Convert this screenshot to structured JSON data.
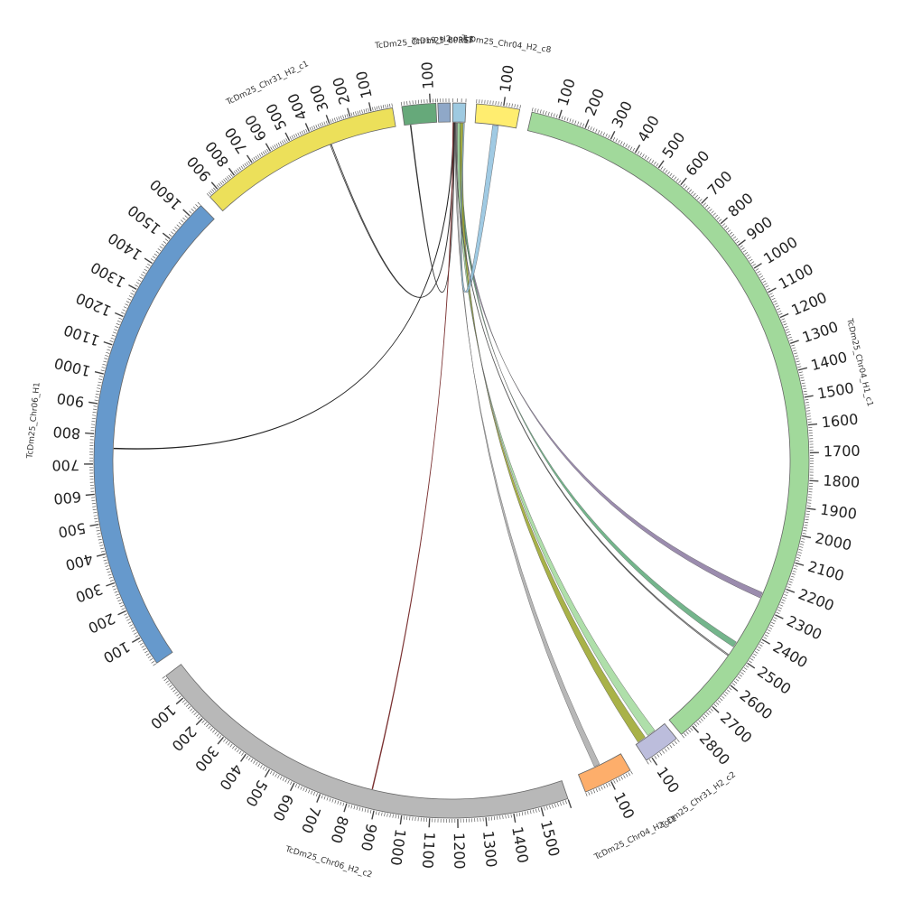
{
  "chromosomes": [
    {
      "id": "hBPREF",
      "label": "BPREF",
      "length": 30,
      "color": "#9ecae1",
      "labels": []
    },
    {
      "id": "h04c8",
      "label": "TcDm25_Chr04_H2_c8",
      "length": 160,
      "color": "#ffed6f",
      "labels": [
        "100"
      ]
    },
    {
      "id": "h04c1",
      "label": "TcDm25_Chr04_H1_c1",
      "length": 2850,
      "color": "#a1d99b",
      "labels": [
        "100",
        "200",
        "300",
        "400",
        "500",
        "600",
        "700",
        "800",
        "900",
        "1000",
        "1100",
        "1200",
        "1300",
        "1400",
        "1500",
        "1600",
        "1700",
        "1800",
        "1900",
        "2000",
        "2100",
        "2200",
        "2300",
        "2400",
        "2500",
        "2600",
        "2700",
        "2800"
      ]
    },
    {
      "id": "h31c2",
      "label": "TcDm25_Chr31_H2_c2",
      "length": 120,
      "color": "#bcbddc",
      "labels": [
        "100"
      ]
    },
    {
      "id": "h04c1b",
      "label": "TcDm25_Chr04_H2_c1",
      "length": 180,
      "color": "#fdae6b",
      "labels": [
        "100"
      ]
    },
    {
      "id": "h06c2",
      "label": "TcDm25_Chr06_H2_c2",
      "length": 1600,
      "color": "#b8b8b8",
      "labels": [
        "100",
        "200",
        "300",
        "400",
        "500",
        "600",
        "700",
        "800",
        "900",
        "1000",
        "1100",
        "1200",
        "1300",
        "1400",
        "1500"
      ]
    },
    {
      "id": "h06",
      "label": "TcDm25_Chr06_H1",
      "length": 1650,
      "color": "#6699cc",
      "labels": [
        "100",
        "200",
        "300",
        "400",
        "500",
        "600",
        "700",
        "800",
        "900",
        "1000",
        "1100",
        "1200",
        "1300",
        "1400",
        "1500",
        "1600"
      ]
    },
    {
      "id": "h31c1",
      "label": "TcDm25_Chr31_H2_c1",
      "length": 950,
      "color": "#ece05a",
      "labels": [
        "100",
        "200",
        "300",
        "400",
        "500",
        "600",
        "700",
        "800",
        "900"
      ]
    },
    {
      "id": "h19",
      "label": "TcDm25_Chr19_H2",
      "length": 120,
      "color": "#66a97a",
      "labels": [
        "100"
      ]
    },
    {
      "id": "hc03",
      "label": "TcDm25_c0353",
      "length": 45,
      "color": "#8fa8c8",
      "labels": []
    }
  ],
  "header_labels": {
    "overlap": "BPREF  TcDm25_c0353"
  },
  "links": [
    {
      "from": "hBPREF",
      "to": "h04c1",
      "color": "#8a78a0"
    },
    {
      "from": "hBPREF",
      "to": "h04c1",
      "color": "#5ca878"
    },
    {
      "from": "hBPREF",
      "to": "h31c2",
      "color": "#a1d99b"
    },
    {
      "from": "hBPREF",
      "to": "h31c2",
      "color": "#9aa428"
    },
    {
      "from": "hBPREF",
      "to": "h04c1b",
      "color": "#aaaaaa"
    },
    {
      "from": "hBPREF",
      "to": "h04c8",
      "color": "#8fc1de"
    },
    {
      "from": "hBPREF",
      "to": "h31c1",
      "color": "#333333"
    },
    {
      "from": "hBPREF",
      "to": "h19",
      "color": "#333333"
    },
    {
      "from": "hBPREF",
      "to": "h06",
      "color": "#222222"
    },
    {
      "from": "hBPREF",
      "to": "h06c2",
      "color": "#7a3030"
    },
    {
      "from": "hBPREF",
      "to": "h04c1",
      "color": "#555555"
    }
  ]
}
